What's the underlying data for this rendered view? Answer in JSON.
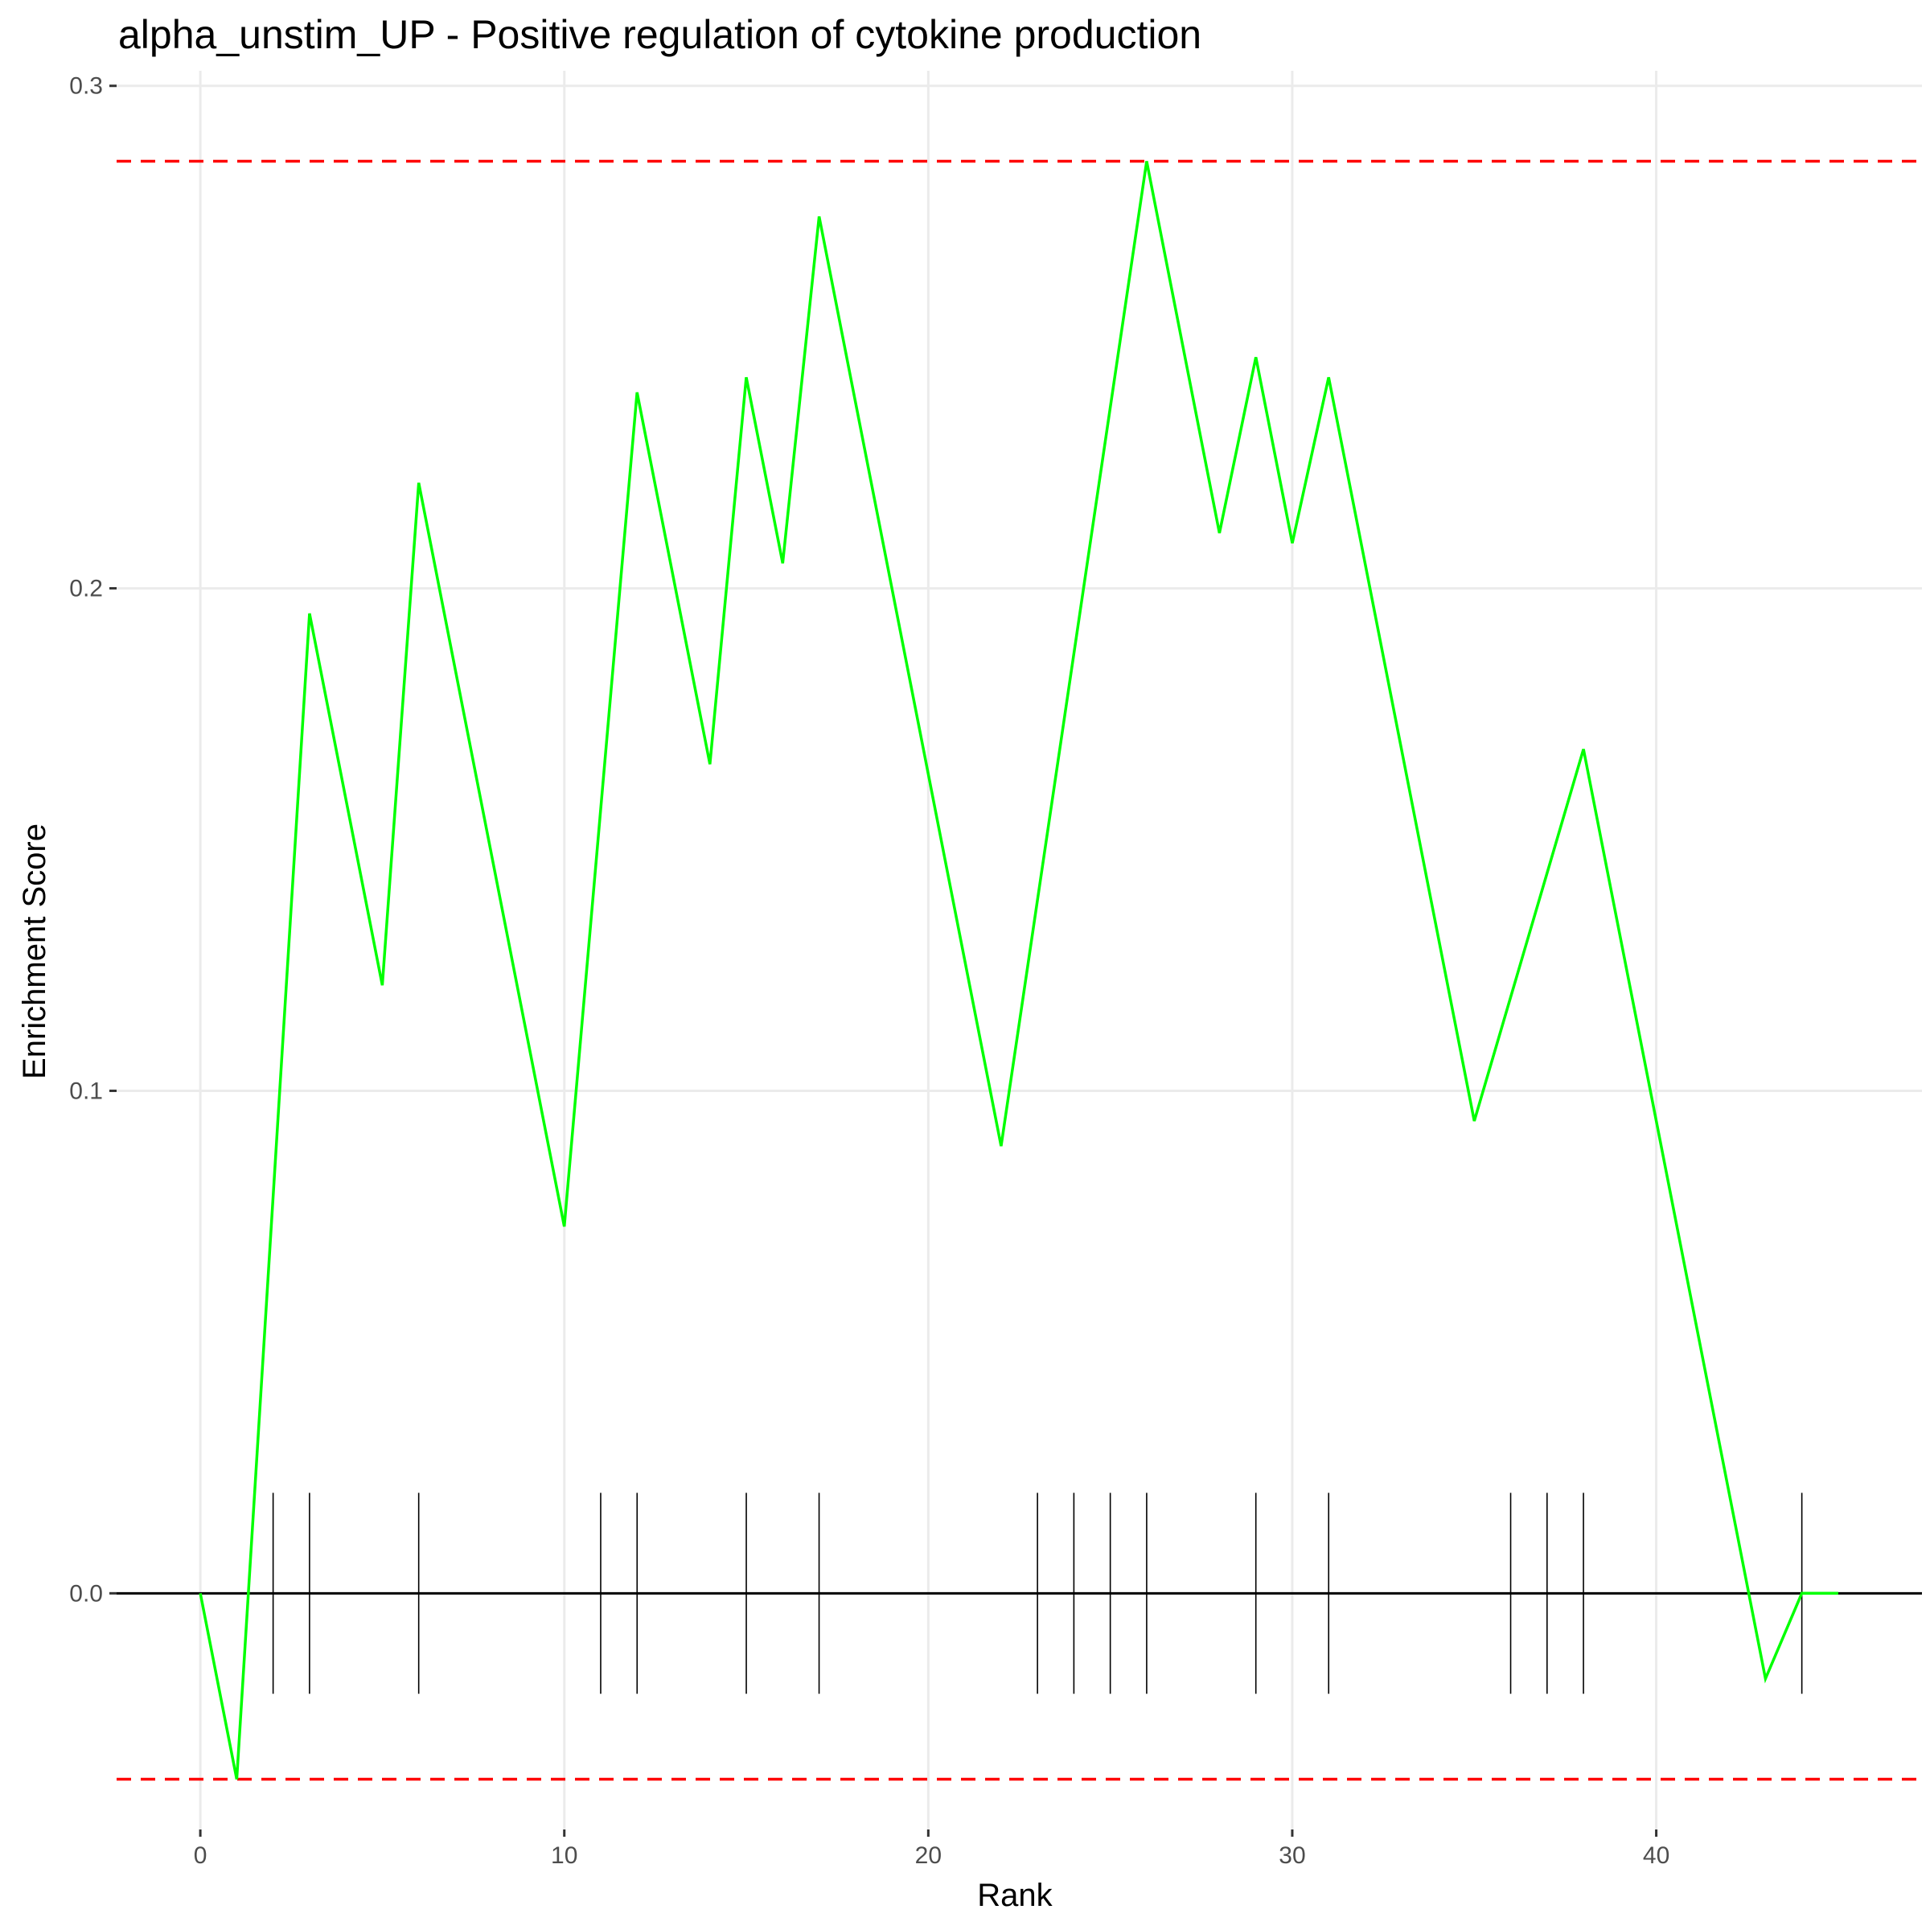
{
  "chart_data": {
    "type": "line",
    "title": "alpha_unstim_UP - Positive regulation of cytokine production",
    "xlabel": "Rank",
    "ylabel": "Enrichment Score",
    "xlim": [
      -2.3,
      47.3
    ],
    "ylim": [
      -0.047,
      0.303
    ],
    "x_ticks": [
      0,
      10,
      20,
      30,
      40
    ],
    "x_tick_labels": [
      "0",
      "10",
      "20",
      "30",
      "40"
    ],
    "y_ticks": [
      0.0,
      0.1,
      0.2,
      0.3
    ],
    "y_tick_labels": [
      "0.0",
      "0.1",
      "0.2",
      "0.3"
    ],
    "grid": true,
    "colors": {
      "line": "#00ff00",
      "reference": "#ff0000",
      "zero_line": "#000000",
      "rug": "#000000",
      "grid": "#ebebeb"
    },
    "series": [
      {
        "x": [
          0,
          1,
          3,
          5,
          6,
          10,
          12,
          14,
          15,
          16,
          17,
          22,
          26,
          28,
          29,
          30,
          31,
          35,
          38,
          43,
          44,
          45
        ],
        "y": [
          0.0,
          -0.037,
          0.195,
          0.121,
          0.221,
          0.073,
          0.239,
          0.165,
          0.242,
          0.205,
          0.274,
          0.089,
          0.285,
          0.211,
          0.246,
          0.209,
          0.242,
          0.094,
          0.168,
          -0.017,
          0.0,
          0.0
        ]
      }
    ],
    "reference_lines": [
      0.285,
      -0.037
    ],
    "zero_line": 0.0,
    "rug": {
      "positions": [
        2,
        3,
        6,
        11,
        12,
        15,
        17,
        23,
        24,
        25,
        26,
        29,
        31,
        36,
        37,
        38,
        44
      ],
      "y_range": [
        -0.02,
        0.02
      ]
    }
  }
}
